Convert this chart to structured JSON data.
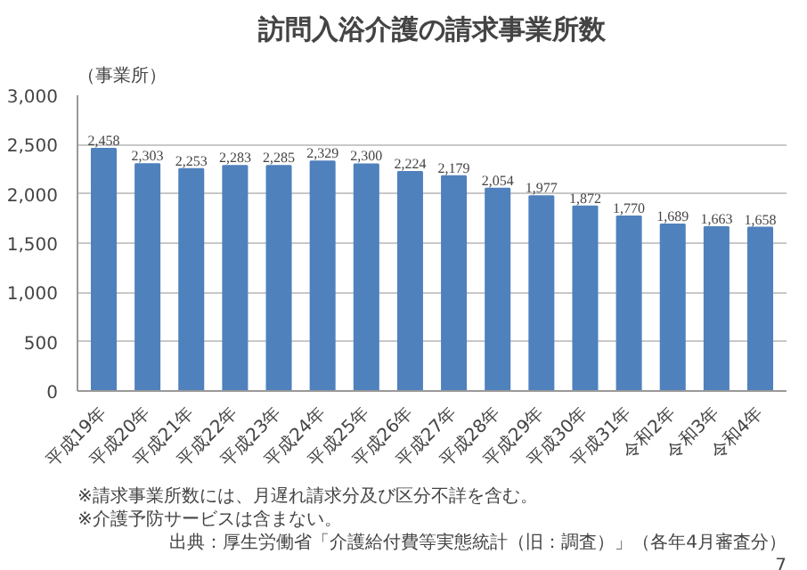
{
  "chart_data": {
    "type": "bar",
    "title": "訪問入浴介護の請求事業所数",
    "ylabel": "（事業所）",
    "categories": [
      "平成19年",
      "平成20年",
      "平成21年",
      "平成22年",
      "平成23年",
      "平成24年",
      "平成25年",
      "平成26年",
      "平成27年",
      "平成28年",
      "平成29年",
      "平成30年",
      "平成31年",
      "令和2年",
      "令和3年",
      "令和4年"
    ],
    "values": [
      2458,
      2303,
      2253,
      2283,
      2285,
      2329,
      2300,
      2224,
      2179,
      2054,
      1977,
      1872,
      1770,
      1689,
      1663,
      1658
    ],
    "color": "#4f81bd",
    "ylim": [
      0,
      3000
    ],
    "yticks": [
      {
        "value": 0,
        "label": "0"
      },
      {
        "value": 500,
        "label": "500"
      },
      {
        "value": 1000,
        "label": "1,000"
      },
      {
        "value": 1500,
        "label": "1,500"
      },
      {
        "value": 2000,
        "label": "2,000"
      },
      {
        "value": 2500,
        "label": "2,500"
      },
      {
        "value": 3000,
        "label": "3,000"
      }
    ],
    "grid": "y",
    "value_labels": [
      "2,458",
      "2,303",
      "2,253",
      "2,283",
      "2,285",
      "2,329",
      "2,300",
      "2,224",
      "2,179",
      "2,054",
      "1,977",
      "1,872",
      "1,770",
      "1,689",
      "1,663",
      "1,658"
    ],
    "annotations": [
      "※請求事業所数には、月遅れ請求分及び区分不詳を含む。",
      "※介護予防サービスは含まない。",
      "出典：厚生労働省「介護給付費等実態統計（旧：調査）」（各年4月審査分）",
      "7"
    ]
  }
}
